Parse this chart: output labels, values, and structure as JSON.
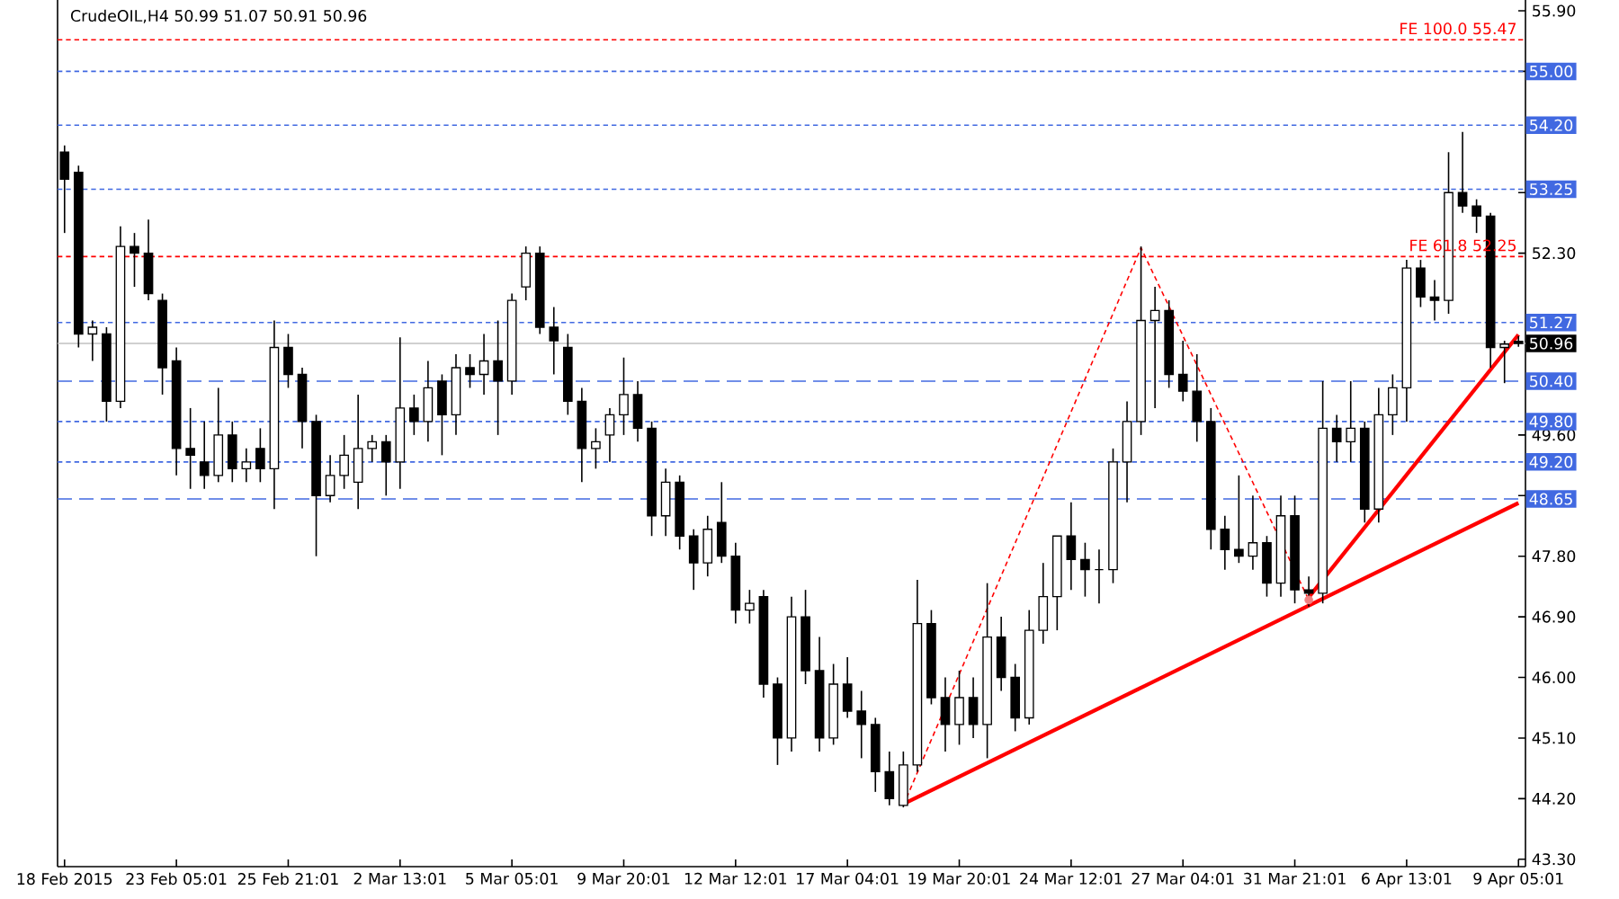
{
  "chart_data": {
    "type": "candlestick",
    "title": "CrudeOIL,H4 50.99 51.07 50.91 50.96",
    "categories": [
      "18 Feb 2015",
      null,
      null,
      null,
      null,
      null,
      null,
      null,
      "23 Feb 05:01",
      null,
      null,
      null,
      null,
      null,
      null,
      null,
      "25 Feb 21:01",
      null,
      null,
      null,
      null,
      null,
      null,
      null,
      "2 Mar 13:01",
      null,
      null,
      null,
      null,
      null,
      null,
      null,
      "5 Mar 05:01",
      null,
      null,
      null,
      null,
      null,
      null,
      null,
      "9 Mar 20:01",
      null,
      null,
      null,
      null,
      null,
      null,
      null,
      "12 Mar 12:01",
      null,
      null,
      null,
      null,
      null,
      null,
      null,
      "17 Mar 04:01",
      null,
      null,
      null,
      null,
      null,
      null,
      null,
      "19 Mar 20:01",
      null,
      null,
      null,
      null,
      null,
      null,
      null,
      "24 Mar 12:01",
      null,
      null,
      null,
      null,
      null,
      null,
      null,
      "27 Mar 04:01",
      null,
      null,
      null,
      null,
      null,
      null,
      null,
      "31 Mar 21:01",
      null,
      null,
      null,
      null,
      null,
      null,
      null,
      "6 Apr 13:01",
      null,
      null,
      null,
      null,
      null,
      null,
      null,
      "9 Apr 05:01"
    ],
    "ohlc": [
      [
        53.8,
        53.9,
        52.6,
        53.4
      ],
      [
        53.5,
        53.6,
        50.9,
        51.1
      ],
      [
        51.1,
        51.3,
        50.7,
        51.2
      ],
      [
        51.1,
        51.2,
        49.8,
        50.1
      ],
      [
        50.1,
        52.7,
        50.0,
        52.4
      ],
      [
        52.4,
        52.6,
        51.8,
        52.3
      ],
      [
        52.3,
        52.8,
        51.6,
        51.7
      ],
      [
        51.6,
        51.7,
        50.2,
        50.6
      ],
      [
        50.7,
        50.9,
        49.0,
        49.4
      ],
      [
        49.4,
        50.0,
        48.8,
        49.3
      ],
      [
        49.2,
        49.8,
        48.8,
        49.0
      ],
      [
        49.0,
        50.3,
        48.9,
        49.6
      ],
      [
        49.6,
        49.8,
        48.9,
        49.1
      ],
      [
        49.1,
        49.4,
        48.9,
        49.2
      ],
      [
        49.4,
        49.7,
        48.9,
        49.1
      ],
      [
        49.1,
        51.3,
        48.5,
        50.9
      ],
      [
        50.9,
        51.1,
        50.3,
        50.5
      ],
      [
        50.5,
        50.6,
        49.4,
        49.8
      ],
      [
        49.8,
        49.9,
        47.8,
        48.7
      ],
      [
        48.7,
        49.3,
        48.6,
        49.0
      ],
      [
        49.0,
        49.6,
        48.8,
        49.3
      ],
      [
        48.9,
        50.2,
        48.5,
        49.4
      ],
      [
        49.4,
        49.6,
        49.2,
        49.5
      ],
      [
        49.5,
        49.6,
        48.7,
        49.2
      ],
      [
        49.2,
        51.05,
        48.8,
        50.0
      ],
      [
        50.0,
        50.2,
        49.6,
        49.8
      ],
      [
        49.8,
        50.7,
        49.5,
        50.3
      ],
      [
        50.4,
        50.5,
        49.3,
        49.9
      ],
      [
        49.9,
        50.8,
        49.6,
        50.6
      ],
      [
        50.6,
        50.8,
        50.3,
        50.5
      ],
      [
        50.5,
        51.1,
        50.2,
        50.7
      ],
      [
        50.7,
        51.3,
        49.6,
        50.4
      ],
      [
        50.4,
        51.7,
        50.2,
        51.6
      ],
      [
        51.8,
        52.4,
        51.6,
        52.3
      ],
      [
        52.3,
        52.4,
        51.1,
        51.2
      ],
      [
        51.2,
        51.5,
        50.5,
        51.0
      ],
      [
        50.9,
        51.1,
        49.9,
        50.1
      ],
      [
        50.1,
        50.3,
        48.9,
        49.4
      ],
      [
        49.4,
        49.7,
        49.1,
        49.5
      ],
      [
        49.6,
        50.0,
        49.2,
        49.9
      ],
      [
        49.9,
        50.75,
        49.6,
        50.2
      ],
      [
        50.2,
        50.4,
        49.5,
        49.7
      ],
      [
        49.7,
        49.8,
        48.1,
        48.4
      ],
      [
        48.4,
        49.1,
        48.1,
        48.9
      ],
      [
        48.9,
        49.0,
        47.9,
        48.1
      ],
      [
        48.1,
        48.2,
        47.3,
        47.7
      ],
      [
        47.7,
        48.4,
        47.5,
        48.2
      ],
      [
        48.3,
        48.9,
        47.7,
        47.8
      ],
      [
        47.8,
        48.0,
        46.8,
        47.0
      ],
      [
        47.0,
        47.3,
        46.8,
        47.1
      ],
      [
        47.2,
        47.3,
        45.7,
        45.9
      ],
      [
        45.9,
        46.0,
        44.7,
        45.1
      ],
      [
        45.1,
        47.2,
        44.9,
        46.9
      ],
      [
        46.9,
        47.3,
        45.9,
        46.1
      ],
      [
        46.1,
        46.6,
        44.9,
        45.1
      ],
      [
        45.1,
        46.2,
        45.0,
        45.9
      ],
      [
        45.9,
        46.3,
        45.4,
        45.5
      ],
      [
        45.5,
        45.8,
        44.8,
        45.3
      ],
      [
        45.3,
        45.4,
        44.3,
        44.6
      ],
      [
        44.6,
        44.9,
        44.1,
        44.2
      ],
      [
        44.1,
        44.9,
        44.07,
        44.7
      ],
      [
        44.7,
        47.45,
        44.6,
        46.8
      ],
      [
        46.8,
        47.0,
        45.6,
        45.7
      ],
      [
        45.7,
        46.0,
        44.9,
        45.3
      ],
      [
        45.3,
        46.1,
        45.0,
        45.7
      ],
      [
        45.7,
        46.0,
        45.1,
        45.3
      ],
      [
        45.3,
        47.4,
        44.8,
        46.6
      ],
      [
        46.6,
        46.9,
        45.8,
        46.0
      ],
      [
        46.0,
        46.2,
        45.2,
        45.4
      ],
      [
        45.4,
        47.0,
        45.3,
        46.7
      ],
      [
        46.7,
        47.7,
        46.5,
        47.2
      ],
      [
        47.2,
        48.1,
        46.7,
        48.1
      ],
      [
        48.1,
        48.6,
        47.3,
        47.75
      ],
      [
        47.75,
        48.0,
        47.2,
        47.6
      ],
      [
        47.6,
        47.9,
        47.1,
        47.6
      ],
      [
        47.6,
        49.4,
        47.4,
        49.2
      ],
      [
        49.2,
        50.1,
        48.6,
        49.8
      ],
      [
        49.8,
        52.4,
        49.6,
        51.3
      ],
      [
        51.3,
        51.8,
        50.0,
        51.45
      ],
      [
        51.45,
        51.6,
        50.3,
        50.5
      ],
      [
        50.5,
        51.0,
        50.1,
        50.25
      ],
      [
        50.25,
        50.8,
        49.5,
        49.8
      ],
      [
        49.8,
        50.0,
        47.9,
        48.2
      ],
      [
        48.2,
        48.4,
        47.6,
        47.9
      ],
      [
        47.9,
        49.0,
        47.7,
        47.8
      ],
      [
        47.8,
        48.7,
        47.6,
        48.0
      ],
      [
        48.0,
        48.1,
        47.2,
        47.4
      ],
      [
        47.4,
        48.7,
        47.2,
        48.4
      ],
      [
        48.4,
        48.7,
        47.1,
        47.3
      ],
      [
        47.3,
        47.5,
        47.05,
        47.25
      ],
      [
        47.25,
        50.4,
        47.1,
        49.7
      ],
      [
        49.7,
        49.9,
        49.2,
        49.5
      ],
      [
        49.5,
        50.4,
        49.2,
        49.7
      ],
      [
        49.7,
        49.8,
        48.3,
        48.5
      ],
      [
        48.5,
        50.3,
        48.3,
        49.9
      ],
      [
        49.9,
        50.5,
        49.6,
        50.3
      ],
      [
        50.3,
        52.2,
        49.8,
        52.08
      ],
      [
        52.08,
        52.2,
        51.5,
        51.65
      ],
      [
        51.65,
        51.9,
        51.3,
        51.6
      ],
      [
        51.6,
        53.8,
        51.4,
        53.2
      ],
      [
        53.2,
        54.1,
        52.9,
        53.0
      ],
      [
        53.0,
        53.1,
        52.6,
        52.85
      ],
      [
        52.85,
        52.9,
        50.6,
        50.9
      ],
      [
        50.9,
        51.0,
        50.37,
        50.95
      ],
      [
        50.99,
        51.07,
        50.91,
        50.96
      ]
    ],
    "series": [
      {
        "type": "line",
        "values": [
          null,
          null,
          null,
          null,
          null,
          null,
          null,
          null,
          null,
          null,
          null,
          null,
          null,
          null,
          null,
          null,
          null,
          null,
          null,
          null,
          null,
          null,
          null,
          null,
          null,
          null,
          null,
          null,
          null,
          null,
          null,
          null,
          null,
          null,
          null,
          null,
          null,
          null,
          null,
          null,
          null,
          null,
          null,
          null,
          null,
          null,
          null,
          null,
          null,
          null,
          null,
          null,
          null,
          null,
          null,
          null,
          null,
          null,
          null,
          null,
          44.12,
          null,
          null,
          null,
          null,
          null,
          null,
          null,
          null,
          null,
          null,
          null,
          null,
          null,
          null,
          null,
          null,
          null,
          null,
          null,
          null,
          null,
          null,
          null,
          null,
          null,
          null,
          null,
          null,
          null,
          null,
          null,
          null,
          null,
          null,
          null,
          null,
          null,
          null,
          null,
          null,
          null,
          null,
          null,
          48.59
        ],
        "color": "#ff0000",
        "line_style": "solid"
      },
      {
        "type": "line",
        "values": [
          null,
          null,
          null,
          null,
          null,
          null,
          null,
          null,
          null,
          null,
          null,
          null,
          null,
          null,
          null,
          null,
          null,
          null,
          null,
          null,
          null,
          null,
          null,
          null,
          null,
          null,
          null,
          null,
          null,
          null,
          null,
          null,
          null,
          null,
          null,
          null,
          null,
          null,
          null,
          null,
          null,
          null,
          null,
          null,
          null,
          null,
          null,
          null,
          null,
          null,
          null,
          null,
          null,
          null,
          null,
          null,
          null,
          null,
          null,
          null,
          null,
          null,
          null,
          null,
          null,
          null,
          null,
          null,
          null,
          null,
          null,
          null,
          null,
          null,
          null,
          null,
          null,
          null,
          null,
          null,
          null,
          null,
          null,
          null,
          null,
          null,
          null,
          null,
          null,
          47.19,
          null,
          null,
          null,
          null,
          null,
          null,
          null,
          null,
          null,
          null,
          null,
          null,
          null,
          null,
          51.09
        ],
        "color": "#ff0000",
        "line_style": "solid"
      },
      {
        "type": "line",
        "values": [
          null,
          null,
          null,
          null,
          null,
          null,
          null,
          null,
          null,
          null,
          null,
          null,
          null,
          null,
          null,
          null,
          null,
          null,
          null,
          null,
          null,
          null,
          null,
          null,
          null,
          null,
          null,
          null,
          null,
          null,
          null,
          null,
          null,
          null,
          null,
          null,
          null,
          null,
          null,
          null,
          null,
          null,
          null,
          null,
          null,
          null,
          null,
          null,
          null,
          null,
          null,
          null,
          null,
          null,
          null,
          null,
          null,
          null,
          null,
          null,
          44.1,
          null,
          null,
          null,
          null,
          null,
          null,
          null,
          null,
          null,
          null,
          null,
          null,
          null,
          null,
          null,
          null,
          52.38,
          null,
          null,
          null,
          null,
          null,
          null,
          null,
          null,
          null,
          null,
          null,
          47.15,
          null,
          null,
          null,
          null,
          null,
          null,
          null,
          null,
          null,
          null,
          null,
          null,
          null,
          null,
          null
        ],
        "color": "#ff0000",
        "line_style": "dotted"
      },
      {
        "type": "scatter",
        "values": [
          null,
          null,
          null,
          null,
          null,
          null,
          null,
          null,
          null,
          null,
          null,
          null,
          null,
          null,
          null,
          null,
          null,
          null,
          null,
          null,
          null,
          null,
          null,
          null,
          null,
          null,
          null,
          null,
          null,
          null,
          null,
          null,
          null,
          null,
          null,
          null,
          null,
          null,
          null,
          null,
          null,
          null,
          null,
          null,
          null,
          null,
          null,
          null,
          null,
          null,
          null,
          null,
          null,
          null,
          null,
          null,
          null,
          null,
          null,
          null,
          null,
          null,
          null,
          null,
          null,
          null,
          null,
          null,
          null,
          null,
          null,
          null,
          null,
          null,
          null,
          null,
          null,
          null,
          null,
          null,
          null,
          null,
          null,
          null,
          null,
          null,
          null,
          null,
          null,
          47.15,
          null,
          null,
          null,
          null,
          null,
          null,
          null,
          null,
          null,
          null,
          null,
          null,
          null,
          null,
          null
        ],
        "color": "#f08080"
      }
    ],
    "ref_lines": [
      {
        "axis": "y",
        "value": 55.47,
        "label": "FE 100.0 55.47",
        "color": "#ff0000",
        "line_style": "dotted"
      },
      {
        "axis": "y",
        "value": 52.25,
        "label": "FE 61.8 52.25",
        "color": "#ff0000",
        "line_style": "dotted"
      },
      {
        "axis": "y",
        "value": 55.0,
        "label": "55.00",
        "color": "#4169e1",
        "line_style": "dotted"
      },
      {
        "axis": "y",
        "value": 54.2,
        "label": "54.20",
        "color": "#4169e1",
        "line_style": "dotted"
      },
      {
        "axis": "y",
        "value": 53.25,
        "label": "53.25",
        "color": "#4169e1",
        "line_style": "dotted"
      },
      {
        "axis": "y",
        "value": 51.27,
        "label": "51.27",
        "color": "#4169e1",
        "line_style": "dotted"
      },
      {
        "axis": "y",
        "value": 50.96,
        "label": "50.96",
        "color": "#c0c0c0",
        "line_style": "solid"
      },
      {
        "axis": "y",
        "value": 50.4,
        "label": "50.40",
        "color": "#4169e1",
        "line_style": "dashed"
      },
      {
        "axis": "y",
        "value": 49.8,
        "label": "49.80",
        "color": "#4169e1",
        "line_style": "dotted"
      },
      {
        "axis": "y",
        "value": 49.2,
        "label": "49.20",
        "color": "#4169e1",
        "line_style": "dotted"
      },
      {
        "axis": "y",
        "value": 48.65,
        "label": "48.65",
        "color": "#4169e1",
        "line_style": "dashed"
      }
    ],
    "ylim": [
      43.19,
      56.06
    ],
    "yticks": [
      "43.30",
      "44.20",
      "45.10",
      "46.00",
      "46.90",
      "47.80",
      {
        "value": 48.7,
        "label": null
      },
      "49.60",
      "52.30",
      {
        "value": 53.2,
        "label": null
      },
      {
        "value": 55.0,
        "label": null
      },
      "55.90"
    ]
  }
}
